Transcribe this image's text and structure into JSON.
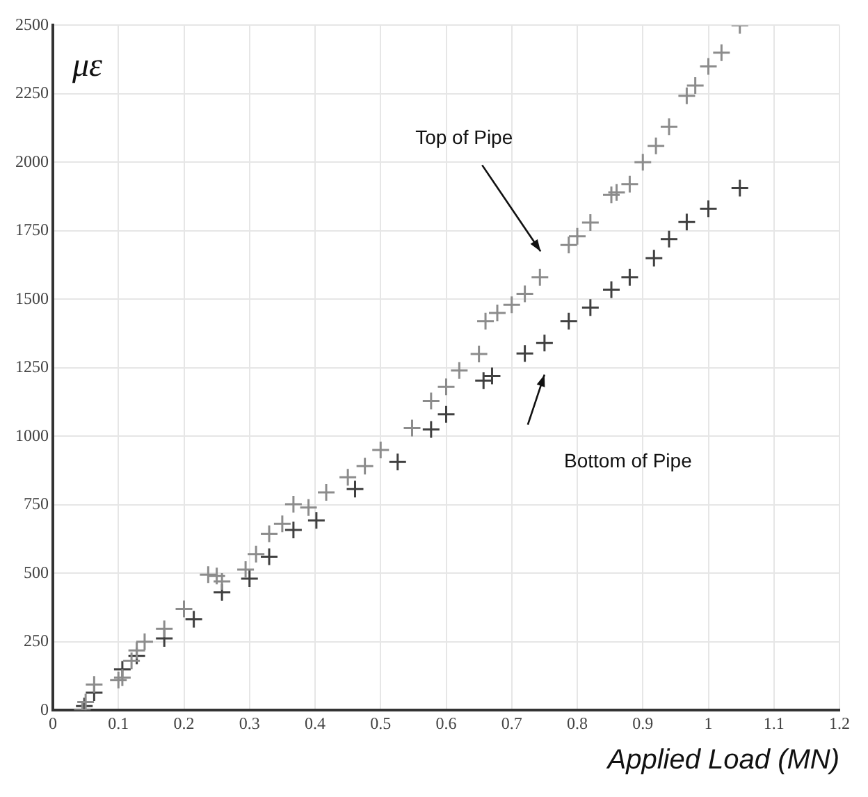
{
  "chart_data": {
    "type": "scatter",
    "xlabel": "Applied Load (MN)",
    "ylabel": "με",
    "xlim": [
      0,
      1.2
    ],
    "xticks": [
      0,
      0.1,
      0.2,
      0.3,
      0.4,
      0.5,
      0.6,
      0.7,
      0.8,
      0.9,
      1,
      1.1,
      1.2
    ],
    "ylim": [
      0,
      2500
    ],
    "yticks": [
      0,
      250,
      500,
      750,
      1000,
      1250,
      1500,
      1750,
      2000,
      2250,
      2500
    ],
    "grid": true,
    "legend": false,
    "marker": "cross",
    "series": [
      {
        "color": "#8c8c8c",
        "x": [
          0.045,
          0.05,
          0.063,
          0.1,
          0.106,
          0.12,
          0.128,
          0.14,
          0.17,
          0.2,
          0.237,
          0.25,
          0.258,
          0.294,
          0.31,
          0.33,
          0.35,
          0.367,
          0.39,
          0.417,
          0.45,
          0.476,
          0.5,
          0.548,
          0.577,
          0.6,
          0.62,
          0.65,
          0.66,
          0.678,
          0.7,
          0.72,
          0.743,
          0.787,
          0.8,
          0.82,
          0.852,
          0.86,
          0.88,
          0.9,
          0.92,
          0.94,
          0.967,
          0.98,
          1.0,
          1.02,
          1.048
        ],
        "values": [
          0,
          30,
          94,
          110,
          119,
          180,
          218,
          250,
          297,
          370,
          495,
          490,
          470,
          513,
          570,
          644,
          680,
          752,
          740,
          795,
          850,
          891,
          950,
          1030,
          1129,
          1180,
          1240,
          1300,
          1420,
          1450,
          1480,
          1520,
          1580,
          1698,
          1730,
          1780,
          1881,
          1890,
          1920,
          2000,
          2060,
          2130,
          2243,
          2280,
          2350,
          2400,
          2500
        ]
      },
      {
        "color": "#404040",
        "x": [
          0.048,
          0.063,
          0.106,
          0.128,
          0.17,
          0.215,
          0.258,
          0.3,
          0.33,
          0.367,
          0.402,
          0.461,
          0.526,
          0.577,
          0.6,
          0.657,
          0.67,
          0.72,
          0.75,
          0.787,
          0.82,
          0.852,
          0.88,
          0.917,
          0.94,
          0.967,
          1.0,
          1.048
        ],
        "values": [
          15,
          64,
          149,
          198,
          262,
          332,
          430,
          480,
          560,
          658,
          693,
          807,
          906,
          1025,
          1080,
          1203,
          1220,
          1302,
          1340,
          1420,
          1470,
          1535,
          1580,
          1650,
          1720,
          1782,
          1830,
          1906
        ]
      }
    ],
    "annotations": [
      "Top of Pipe",
      "Bottom of Pipe"
    ]
  }
}
